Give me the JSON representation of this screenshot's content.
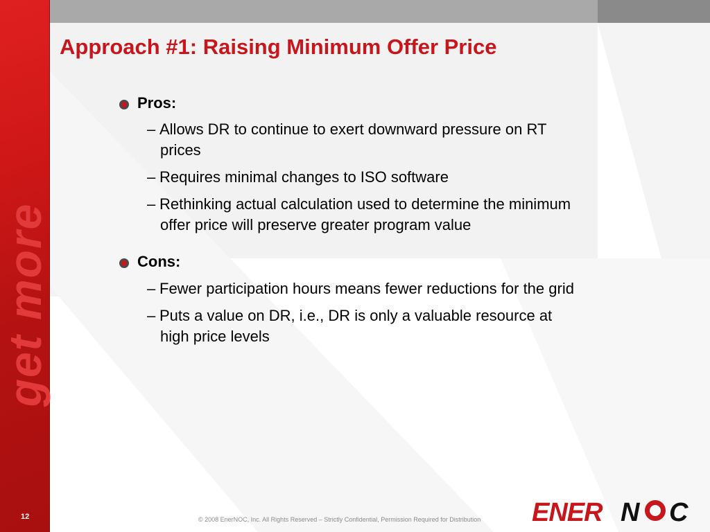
{
  "slide": {
    "title": "Approach #1: Raising Minimum Offer Price",
    "tagline": "get more",
    "page_number": "12",
    "copyright": "© 2008 EnerNOC, Inc. All Rights Reserved – Strictly Confidential, Permission Required for Distribution",
    "logo": {
      "part1": "ENER",
      "part2": "N",
      "part3": "C"
    }
  },
  "sections": [
    {
      "heading": "Pros:",
      "items": [
        {
          "dash": "–",
          "line1": "Allows DR to continue to exert downward pressure on RT",
          "line2": "prices"
        },
        {
          "dash": "–",
          "line1": "Requires minimal changes to ISO software",
          "line2": ""
        },
        {
          "dash": "–",
          "line1": "Rethinking actual calculation used to determine the minimum",
          "line2": "offer price will preserve greater program value"
        }
      ]
    },
    {
      "heading": "Cons:",
      "items": [
        {
          "dash": "–",
          "line1": "Fewer participation hours means fewer reductions for the grid",
          "line2": ""
        },
        {
          "dash": "–",
          "line1": "Puts a value on DR, i.e., DR is only a valuable resource at",
          "line2": "high price levels"
        }
      ]
    }
  ],
  "colors": {
    "accent_red": "#c8161d",
    "band_red": "#cf1717",
    "top_bar_grey": "#a9a9a9"
  },
  "icons": {
    "bullet": "red-dot-bullet-icon"
  }
}
